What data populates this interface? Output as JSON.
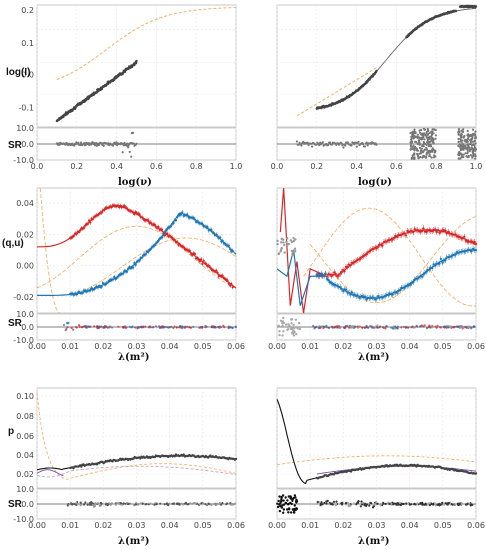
{
  "colors": {
    "model": "#333333",
    "prior": "#f5b068",
    "q": "#d62728",
    "u": "#1f77b4",
    "p": "#444444",
    "p_model_alt": "#7a4fa6",
    "p_prior_dash": "#c9a0c8",
    "resid": "#777777"
  },
  "labels": {
    "logI": "log(I)",
    "SR": "SR",
    "qu": "(q,u)",
    "p": "p",
    "lognu": "log(ν)",
    "lambda2": "λ(m²)"
  },
  "chart_data": [
    {
      "panel": "top-left",
      "type": "scatter",
      "ylabel": "log(I)",
      "xlabel": "log(ν)",
      "xlim": [
        0.0,
        1.0
      ],
      "ylim": [
        -0.13,
        0.24
      ],
      "xticks": [
        "0.0",
        "0.2",
        "0.4",
        "0.6",
        "0.8",
        "1.0"
      ],
      "yticks": [
        "-0.1",
        "0.0",
        "0.1",
        "0.2"
      ],
      "series": [
        {
          "role": "data",
          "x": [
            0.1,
            0.15,
            0.2,
            0.25,
            0.3,
            0.35,
            0.4,
            0.45,
            0.5
          ],
          "y": [
            -0.11,
            -0.085,
            -0.06,
            -0.035,
            -0.01,
            0.01,
            0.03,
            0.05,
            0.07
          ]
        },
        {
          "role": "prior",
          "x": [
            0.1,
            0.2,
            0.3,
            0.4,
            0.5,
            0.6,
            0.7,
            0.8,
            0.9,
            1.0
          ],
          "y": [
            -0.02,
            0.02,
            0.07,
            0.12,
            0.16,
            0.2,
            0.225,
            0.24,
            0.245,
            0.248
          ]
        }
      ]
    },
    {
      "panel": "top-left-resid",
      "type": "scatter",
      "ylabel": "SR",
      "yticks": [
        "10.0",
        "0.0",
        "-10.0"
      ],
      "ylim": [
        -10,
        10
      ]
    },
    {
      "panel": "top-right",
      "type": "scatter",
      "ylabel": "",
      "xlabel": "log(ν)",
      "xlim": [
        0.0,
        1.0
      ],
      "xticks": [
        "0.0",
        "0.2",
        "0.4",
        "0.6",
        "0.8",
        "1.0"
      ],
      "series": [
        {
          "role": "model",
          "x": [
            0.1,
            0.2,
            0.3,
            0.4,
            0.5,
            0.6,
            0.7,
            0.8,
            0.9,
            1.0
          ],
          "y": [
            0.0,
            0.02,
            0.045,
            0.08,
            0.12,
            0.165,
            0.2,
            0.215,
            0.22,
            0.22
          ]
        },
        {
          "role": "prior",
          "x": [
            0.1,
            0.2,
            0.3,
            0.4,
            0.5
          ],
          "y": [
            -0.1,
            -0.06,
            -0.02,
            0.02,
            0.05
          ]
        }
      ]
    },
    {
      "panel": "top-right-resid",
      "type": "scatter",
      "ylabel": "",
      "ylim": [
        -10,
        10
      ]
    },
    {
      "panel": "mid-left",
      "type": "line",
      "ylabel": "(q,u)",
      "xlabel": "λ(m²)",
      "xlim": [
        0.0,
        0.06
      ],
      "ylim": [
        -0.03,
        0.05
      ],
      "xticks": [
        "0.00",
        "0.01",
        "0.02",
        "0.03",
        "0.04",
        "0.05",
        "0.06"
      ],
      "yticks": [
        "0.04",
        "0.02",
        "0.00",
        "-0.02"
      ],
      "series": [
        {
          "role": "q",
          "x": [
            0.0,
            0.005,
            0.01,
            0.015,
            0.02,
            0.025,
            0.03,
            0.035,
            0.04,
            0.045,
            0.05,
            0.055,
            0.06
          ],
          "y": [
            0.01,
            0.012,
            0.018,
            0.03,
            0.036,
            0.038,
            0.033,
            0.022,
            0.01,
            -0.004,
            -0.016,
            -0.025,
            -0.028
          ]
        },
        {
          "role": "u",
          "x": [
            0.0,
            0.005,
            0.01,
            0.015,
            0.02,
            0.025,
            0.03,
            0.035,
            0.04,
            0.045,
            0.05,
            0.055,
            0.06
          ],
          "y": [
            -0.023,
            -0.022,
            -0.02,
            -0.017,
            -0.01,
            -0.002,
            0.012,
            0.026,
            0.033,
            0.033,
            0.027,
            0.017,
            0.007
          ]
        }
      ]
    },
    {
      "panel": "mid-left-resid",
      "type": "scatter",
      "ylabel": "SR",
      "yticks": [
        "10.0",
        "0.0",
        "-10.0"
      ],
      "ylim": [
        -10,
        10
      ]
    },
    {
      "panel": "mid-right",
      "type": "line",
      "ylabel": "",
      "xlabel": "λ(m²)",
      "xlim": [
        0.0,
        0.06
      ],
      "xticks": [
        "0.00",
        "0.01",
        "0.02",
        "0.03",
        "0.04",
        "0.05",
        "0.06"
      ],
      "series": [
        {
          "role": "q",
          "x": [
            0.015,
            0.02,
            0.025,
            0.03,
            0.035,
            0.04,
            0.045,
            0.05,
            0.055,
            0.06
          ],
          "y": [
            -0.01,
            -0.01,
            -0.004,
            0.006,
            0.014,
            0.02,
            0.02,
            0.014,
            0.008,
            0.008
          ]
        },
        {
          "role": "u",
          "x": [
            0.015,
            0.02,
            0.025,
            0.03,
            0.035,
            0.04,
            0.045,
            0.05,
            0.055,
            0.06
          ],
          "y": [
            -0.01,
            -0.01,
            -0.016,
            -0.022,
            -0.024,
            -0.018,
            -0.008,
            0.002,
            0.008,
            0.008
          ]
        }
      ]
    },
    {
      "panel": "mid-right-resid",
      "type": "scatter",
      "ylabel": "",
      "ylim": [
        -10,
        10
      ]
    },
    {
      "panel": "bottom-left",
      "type": "line",
      "ylabel": "p",
      "xlabel": "λ(m²)",
      "xlim": [
        0.0,
        0.06
      ],
      "ylim": [
        0.0,
        0.11
      ],
      "xticks": [
        "0.00",
        "0.01",
        "0.02",
        "0.03",
        "0.04",
        "0.05",
        "0.06"
      ],
      "yticks": [
        "0.10",
        "0.08",
        "0.06",
        "0.04",
        "0.02"
      ],
      "series": [
        {
          "role": "p-model",
          "x": [
            0.0,
            0.01,
            0.02,
            0.03,
            0.04,
            0.05,
            0.06
          ],
          "y": [
            0.02,
            0.024,
            0.033,
            0.037,
            0.035,
            0.031,
            0.028
          ]
        },
        {
          "role": "prior",
          "x": [
            0.0,
            0.002,
            0.005,
            0.008,
            0.01,
            0.02,
            0.03,
            0.04,
            0.05,
            0.06
          ],
          "y": [
            0.1,
            0.08,
            0.035,
            0.012,
            0.008,
            0.02,
            0.028,
            0.025,
            0.016,
            0.011
          ]
        }
      ]
    },
    {
      "panel": "bottom-left-resid",
      "type": "scatter",
      "ylabel": "SR",
      "yticks": [
        "10.0",
        "0.0",
        "-10.0"
      ],
      "ylim": [
        -10,
        10
      ]
    },
    {
      "panel": "bottom-right",
      "type": "line",
      "ylabel": "",
      "xlabel": "λ(m²)",
      "xlim": [
        0.0,
        0.06
      ],
      "xticks": [
        "0.00",
        "0.01",
        "0.02",
        "0.03",
        "0.04",
        "0.05",
        "0.06"
      ],
      "series": [
        {
          "role": "p-model",
          "x": [
            0.0,
            0.002,
            0.004,
            0.006,
            0.008,
            0.01,
            0.02,
            0.03,
            0.04,
            0.05,
            0.06
          ],
          "y": [
            0.1,
            0.09,
            0.065,
            0.03,
            0.01,
            0.01,
            0.02,
            0.025,
            0.025,
            0.022,
            0.02
          ]
        },
        {
          "role": "prior",
          "x": [
            0.0,
            0.01,
            0.02,
            0.03,
            0.04,
            0.05,
            0.06
          ],
          "y": [
            0.02,
            0.03,
            0.035,
            0.037,
            0.036,
            0.033,
            0.03
          ]
        }
      ]
    },
    {
      "panel": "bottom-right-resid",
      "type": "scatter",
      "ylabel": "",
      "ylim": [
        -10,
        10
      ]
    }
  ]
}
